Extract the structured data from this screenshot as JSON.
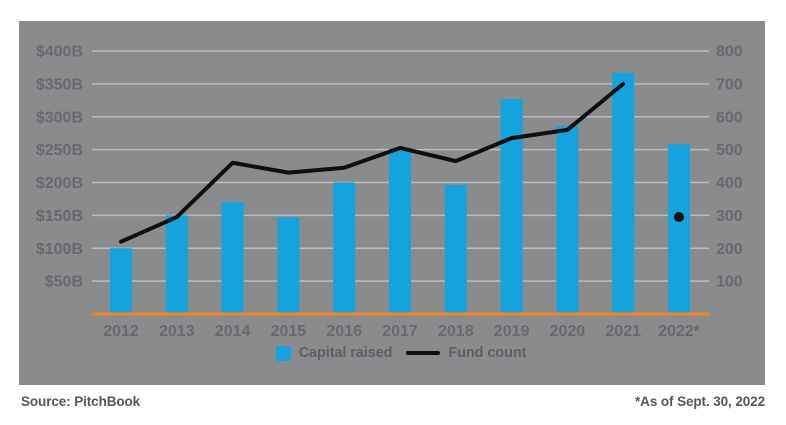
{
  "chart_data": {
    "type": "combo",
    "title": "",
    "categories": [
      "2012",
      "2013",
      "2014",
      "2015",
      "2016",
      "2017",
      "2018",
      "2019",
      "2020",
      "2021",
      "2022*"
    ],
    "series": [
      {
        "name": "Capital raised",
        "type": "bar",
        "axis": "left",
        "unit": "USD billions",
        "values": [
          100,
          150,
          170,
          147,
          200,
          252,
          196,
          327,
          286,
          367,
          258
        ]
      },
      {
        "name": "Fund count",
        "type": "line",
        "axis": "right",
        "values": [
          220,
          295,
          460,
          430,
          445,
          505,
          465,
          535,
          560,
          700,
          295
        ],
        "line_through_index": 9,
        "final_point_marker": "dot"
      }
    ],
    "left_axis": {
      "tick_labels": [
        "$400B",
        "$350B",
        "$300B",
        "$250B",
        "$200B",
        "$150B",
        "$100B",
        "$50B"
      ],
      "min": 0,
      "max": 400
    },
    "right_axis": {
      "tick_labels": [
        "800",
        "700",
        "600",
        "500",
        "400",
        "300",
        "200",
        "100"
      ],
      "min": 0,
      "max": 800
    },
    "grid": true,
    "legend_position": "bottom-center"
  },
  "footer": {
    "source": "Source: PitchBook",
    "footnote": "*As of Sept. 30, 2022"
  },
  "colors": {
    "bar": "#14A3DC",
    "line": "#0e0f10",
    "dot": "#0e0f10",
    "baseline": "#F5831F",
    "panel": "#898B8D",
    "grid": "#BABCBE",
    "axis_text": "#67696C",
    "legend_text": "#5d5f62",
    "footer_text": "#54565A"
  }
}
